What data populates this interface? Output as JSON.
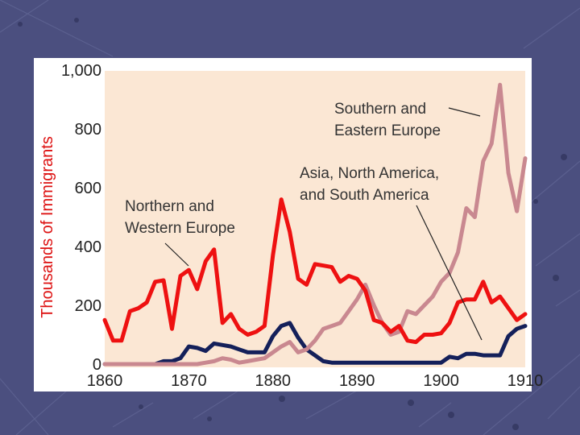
{
  "chart_data": {
    "type": "line",
    "ylabel": "Thousands of Immigrants",
    "ylim": [
      0,
      1000
    ],
    "xlim": [
      1860,
      1910
    ],
    "xticks": [
      "1860",
      "1870",
      "1880",
      "1890",
      "1900",
      "1910"
    ],
    "yticks": [
      "0",
      "200",
      "400",
      "600",
      "800",
      "1,000"
    ],
    "grid": false,
    "legend": "inline labels",
    "series": [
      {
        "name": "Northern and Western Europe",
        "color": "#ee1111",
        "x": [
          1860,
          1861,
          1862,
          1863,
          1864,
          1865,
          1866,
          1867,
          1868,
          1869,
          1870,
          1871,
          1872,
          1873,
          1874,
          1875,
          1876,
          1877,
          1878,
          1879,
          1880,
          1881,
          1882,
          1883,
          1884,
          1885,
          1886,
          1887,
          1888,
          1889,
          1890,
          1891,
          1892,
          1893,
          1894,
          1895,
          1896,
          1897,
          1898,
          1899,
          1900,
          1901,
          1902,
          1903,
          1904,
          1905,
          1906,
          1907,
          1908,
          1909,
          1910
        ],
        "values": [
          150,
          80,
          80,
          180,
          190,
          210,
          280,
          285,
          120,
          300,
          320,
          255,
          350,
          390,
          140,
          170,
          120,
          100,
          110,
          130,
          370,
          560,
          450,
          290,
          270,
          340,
          335,
          330,
          280,
          300,
          290,
          250,
          150,
          140,
          110,
          130,
          80,
          75,
          100,
          100,
          105,
          140,
          210,
          220,
          220,
          280,
          210,
          230,
          190,
          150,
          170
        ]
      },
      {
        "name": "Southern and Eastern Europe",
        "color": "#c98890",
        "x": [
          1860,
          1861,
          1862,
          1863,
          1864,
          1865,
          1866,
          1867,
          1868,
          1869,
          1870,
          1871,
          1872,
          1873,
          1874,
          1875,
          1876,
          1877,
          1878,
          1879,
          1880,
          1881,
          1882,
          1883,
          1884,
          1885,
          1886,
          1887,
          1888,
          1889,
          1890,
          1891,
          1892,
          1893,
          1894,
          1895,
          1896,
          1897,
          1898,
          1899,
          1900,
          1901,
          1902,
          1903,
          1904,
          1905,
          1906,
          1907,
          1908,
          1909,
          1910
        ],
        "values": [
          0,
          0,
          0,
          0,
          0,
          0,
          0,
          0,
          0,
          0,
          0,
          0,
          5,
          10,
          20,
          15,
          5,
          10,
          15,
          20,
          40,
          60,
          75,
          40,
          50,
          80,
          120,
          130,
          140,
          180,
          220,
          270,
          200,
          140,
          100,
          110,
          180,
          170,
          200,
          230,
          280,
          310,
          380,
          530,
          500,
          690,
          750,
          950,
          650,
          520,
          700
        ]
      },
      {
        "name": "Asia, North America, and South America",
        "color": "#14205a",
        "x": [
          1860,
          1861,
          1862,
          1863,
          1864,
          1865,
          1866,
          1867,
          1868,
          1869,
          1870,
          1871,
          1872,
          1873,
          1874,
          1875,
          1876,
          1877,
          1878,
          1879,
          1880,
          1881,
          1882,
          1883,
          1884,
          1885,
          1886,
          1887,
          1888,
          1889,
          1890,
          1891,
          1892,
          1893,
          1894,
          1895,
          1896,
          1897,
          1898,
          1899,
          1900,
          1901,
          1902,
          1903,
          1904,
          1905,
          1906,
          1907,
          1908,
          1909,
          1910
        ],
        "values": [
          0,
          0,
          0,
          0,
          0,
          0,
          0,
          10,
          10,
          20,
          60,
          55,
          45,
          70,
          65,
          60,
          50,
          40,
          40,
          40,
          95,
          130,
          140,
          90,
          50,
          30,
          10,
          5,
          5,
          5,
          5,
          5,
          5,
          5,
          5,
          5,
          5,
          5,
          5,
          5,
          5,
          25,
          20,
          35,
          35,
          30,
          30,
          30,
          95,
          120,
          130
        ]
      }
    ]
  }
}
